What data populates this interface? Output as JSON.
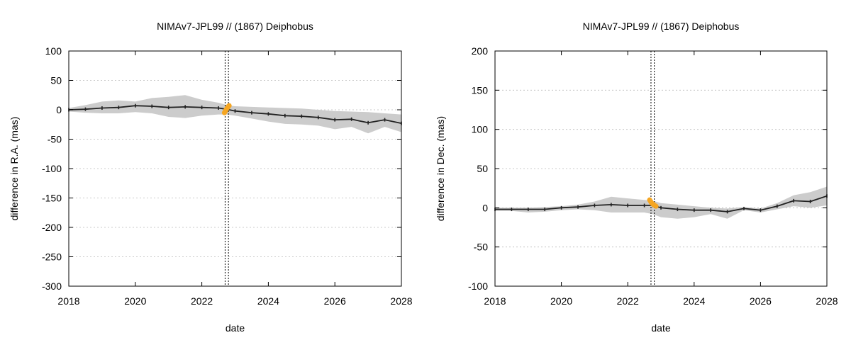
{
  "chart_data": [
    {
      "type": "line",
      "title": "NIMAv7-JPL99 // (1867) Deiphobus",
      "xlabel": "date",
      "ylabel": "difference in R.A. (mas)",
      "xlim": [
        2018,
        2028
      ],
      "ylim": [
        -300,
        100
      ],
      "xticks": [
        2018,
        2020,
        2022,
        2024,
        2026,
        2028
      ],
      "yticks": [
        -300,
        -250,
        -200,
        -150,
        -100,
        -50,
        0,
        50,
        100
      ],
      "vlines": [
        2022.7,
        2022.8
      ],
      "series": {
        "name": "difference",
        "color": "#222222",
        "x": [
          2018.0,
          2018.5,
          2019.0,
          2019.5,
          2020.0,
          2020.5,
          2021.0,
          2021.5,
          2022.0,
          2022.5,
          2022.75,
          2023.0,
          2023.5,
          2024.0,
          2024.5,
          2025.0,
          2025.5,
          2026.0,
          2026.5,
          2027.0,
          2027.5,
          2028.0
        ],
        "y": [
          0,
          1,
          3,
          4,
          7,
          6,
          4,
          5,
          4,
          3,
          1,
          -2,
          -5,
          -7,
          -10,
          -11,
          -13,
          -17,
          -16,
          -22,
          -17,
          -23
        ]
      },
      "band": {
        "color": "#cccccc",
        "upper": [
          3,
          8,
          14,
          16,
          14,
          20,
          22,
          25,
          17,
          12,
          8,
          6,
          5,
          4,
          3,
          2,
          0,
          -2,
          -3,
          -4,
          -6,
          -8
        ],
        "lower": [
          -3,
          -5,
          -6,
          -6,
          -4,
          -6,
          -12,
          -14,
          -10,
          -8,
          -8,
          -10,
          -15,
          -20,
          -24,
          -25,
          -27,
          -33,
          -29,
          -40,
          -29,
          -38
        ]
      },
      "highlight": {
        "color": "#f5a623",
        "x": [
          2022.68,
          2022.7,
          2022.72,
          2022.74,
          2022.76,
          2022.78,
          2022.8,
          2022.82
        ],
        "y": [
          -5,
          -3,
          -1,
          1,
          3,
          4,
          6,
          7
        ]
      }
    },
    {
      "type": "line",
      "title": "NIMAv7-JPL99 // (1867) Deiphobus",
      "xlabel": "date",
      "ylabel": "difference in Dec. (mas)",
      "xlim": [
        2018,
        2028
      ],
      "ylim": [
        -100,
        200
      ],
      "xticks": [
        2018,
        2020,
        2022,
        2024,
        2026,
        2028
      ],
      "yticks": [
        -100,
        -50,
        0,
        50,
        100,
        150,
        200
      ],
      "vlines": [
        2022.7,
        2022.8
      ],
      "series": {
        "name": "difference",
        "color": "#222222",
        "x": [
          2018.0,
          2018.5,
          2019.0,
          2019.5,
          2020.0,
          2020.5,
          2021.0,
          2021.5,
          2022.0,
          2022.5,
          2022.75,
          2023.0,
          2023.5,
          2024.0,
          2024.5,
          2025.0,
          2025.5,
          2026.0,
          2026.5,
          2027.0,
          2027.5,
          2028.0
        ],
        "y": [
          -2,
          -2,
          -2,
          -2,
          0,
          1,
          3,
          4,
          3,
          3,
          3,
          0,
          -2,
          -3,
          -3,
          -5,
          -1,
          -3,
          2,
          9,
          8,
          15
        ]
      },
      "band": {
        "color": "#cccccc",
        "upper": [
          0,
          0,
          0,
          1,
          2,
          4,
          8,
          14,
          12,
          10,
          9,
          6,
          4,
          2,
          0,
          -1,
          1,
          -1,
          6,
          16,
          20,
          27
        ],
        "lower": [
          -4,
          -4,
          -6,
          -5,
          -3,
          -2,
          -3,
          -6,
          -6,
          -6,
          -8,
          -12,
          -14,
          -12,
          -8,
          -14,
          -3,
          -6,
          -2,
          2,
          0,
          3
        ]
      },
      "highlight": {
        "color": "#f5a623",
        "x": [
          2022.66,
          2022.69,
          2022.72,
          2022.75,
          2022.78,
          2022.81,
          2022.85
        ],
        "y": [
          10,
          8,
          6,
          5,
          4,
          3,
          2
        ]
      }
    }
  ]
}
